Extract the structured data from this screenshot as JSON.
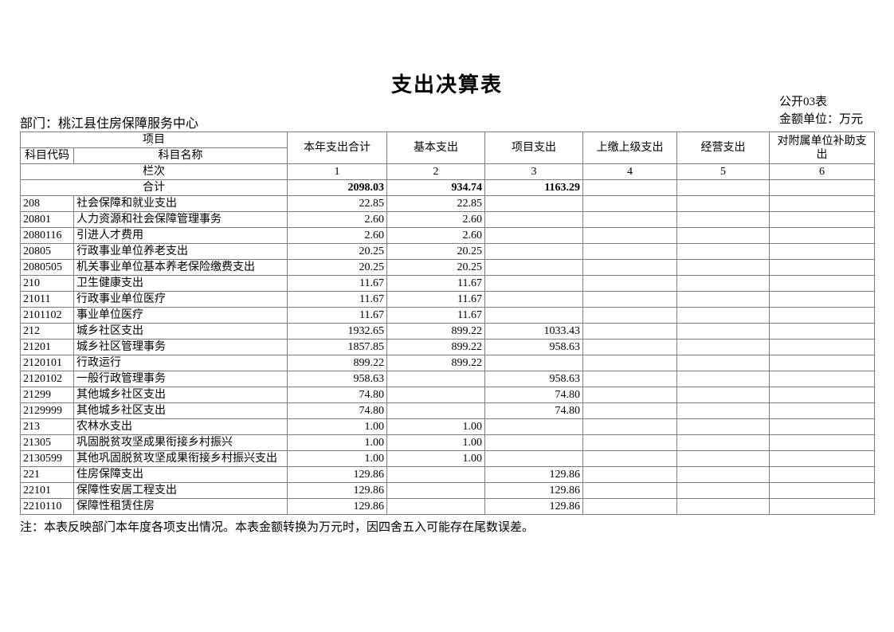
{
  "page": {
    "title": "支出决算表",
    "form_label": "公开03表",
    "unit_label": "金额单位：万元",
    "department": "部门：桃江县住房保障服务中心",
    "note": "注：本表反映部门本年度各项支出情况。本表金额转换为万元时，因四舍五入可能存在尾数误差。"
  },
  "table": {
    "header": {
      "project_group": "项目",
      "code": "科目代码",
      "name": "科目名称",
      "columns": [
        "本年支出合计",
        "基本支出",
        "项目支出",
        "上缴上级支出",
        "经营支出",
        "对附属单位补助支出"
      ],
      "lanci_label": "栏次",
      "lanci_numbers": [
        "1",
        "2",
        "3",
        "4",
        "5",
        "6"
      ]
    },
    "total_row": {
      "label": "合计",
      "values": [
        "2098.03",
        "934.74",
        "1163.29",
        "",
        "",
        ""
      ]
    },
    "rows": [
      {
        "code": "208",
        "name": "社会保障和就业支出",
        "values": [
          "22.85",
          "22.85",
          "",
          "",
          "",
          ""
        ]
      },
      {
        "code": "20801",
        "name": "人力资源和社会保障管理事务",
        "values": [
          "2.60",
          "2.60",
          "",
          "",
          "",
          ""
        ]
      },
      {
        "code": "2080116",
        "name": "引进人才费用",
        "values": [
          "2.60",
          "2.60",
          "",
          "",
          "",
          ""
        ]
      },
      {
        "code": "20805",
        "name": "行政事业单位养老支出",
        "values": [
          "20.25",
          "20.25",
          "",
          "",
          "",
          ""
        ]
      },
      {
        "code": "2080505",
        "name": "机关事业单位基本养老保险缴费支出",
        "values": [
          "20.25",
          "20.25",
          "",
          "",
          "",
          ""
        ]
      },
      {
        "code": "210",
        "name": "卫生健康支出",
        "values": [
          "11.67",
          "11.67",
          "",
          "",
          "",
          ""
        ]
      },
      {
        "code": "21011",
        "name": "行政事业单位医疗",
        "values": [
          "11.67",
          "11.67",
          "",
          "",
          "",
          ""
        ]
      },
      {
        "code": "2101102",
        "name": "事业单位医疗",
        "values": [
          "11.67",
          "11.67",
          "",
          "",
          "",
          ""
        ]
      },
      {
        "code": "212",
        "name": "城乡社区支出",
        "values": [
          "1932.65",
          "899.22",
          "1033.43",
          "",
          "",
          ""
        ]
      },
      {
        "code": "21201",
        "name": "城乡社区管理事务",
        "values": [
          "1857.85",
          "899.22",
          "958.63",
          "",
          "",
          ""
        ]
      },
      {
        "code": "2120101",
        "name": "行政运行",
        "values": [
          "899.22",
          "899.22",
          "",
          "",
          "",
          ""
        ]
      },
      {
        "code": "2120102",
        "name": "一般行政管理事务",
        "values": [
          "958.63",
          "",
          "958.63",
          "",
          "",
          ""
        ]
      },
      {
        "code": "21299",
        "name": "其他城乡社区支出",
        "values": [
          "74.80",
          "",
          "74.80",
          "",
          "",
          ""
        ]
      },
      {
        "code": "2129999",
        "name": "其他城乡社区支出",
        "values": [
          "74.80",
          "",
          "74.80",
          "",
          "",
          ""
        ]
      },
      {
        "code": "213",
        "name": "农林水支出",
        "values": [
          "1.00",
          "1.00",
          "",
          "",
          "",
          ""
        ]
      },
      {
        "code": "21305",
        "name": "巩固脱贫攻坚成果衔接乡村振兴",
        "values": [
          "1.00",
          "1.00",
          "",
          "",
          "",
          ""
        ]
      },
      {
        "code": "2130599",
        "name": "其他巩固脱贫攻坚成果衔接乡村振兴支出",
        "values": [
          "1.00",
          "1.00",
          "",
          "",
          "",
          ""
        ]
      },
      {
        "code": "221",
        "name": "住房保障支出",
        "values": [
          "129.86",
          "",
          "129.86",
          "",
          "",
          ""
        ]
      },
      {
        "code": "22101",
        "name": "保障性安居工程支出",
        "values": [
          "129.86",
          "",
          "129.86",
          "",
          "",
          ""
        ]
      },
      {
        "code": "2210110",
        "name": "保障性租赁住房",
        "values": [
          "129.86",
          "",
          "129.86",
          "",
          "",
          ""
        ]
      }
    ]
  }
}
